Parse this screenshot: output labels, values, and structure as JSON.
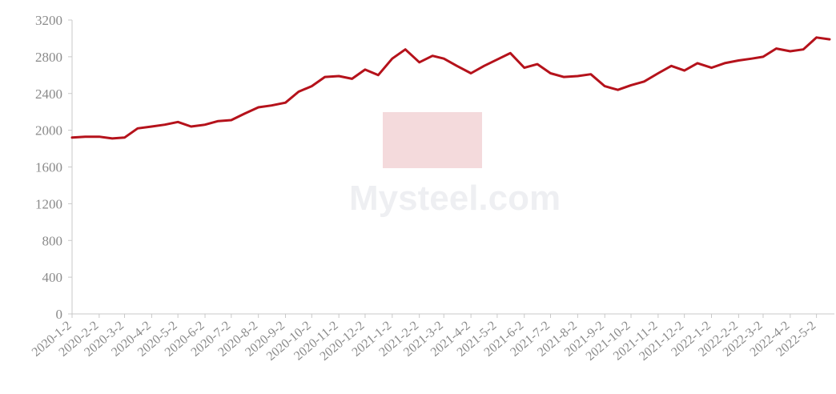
{
  "chart_data": {
    "type": "line",
    "title": "",
    "xlabel": "",
    "ylabel": "",
    "ylim": [
      0,
      3200
    ],
    "grid": false,
    "legend": "none",
    "y_ticks": [
      "0",
      "400",
      "800",
      "1200",
      "1600",
      "2000",
      "2400",
      "2800",
      "3200"
    ],
    "x_ticks": [
      "2020-1-2",
      "2020-2-2",
      "2020-3-2",
      "2020-4-2",
      "2020-5-2",
      "2020-6-2",
      "2020-7-2",
      "2020-8-2",
      "2020-9-2",
      "2020-10-2",
      "2020-11-2",
      "2020-12-2",
      "2021-1-2",
      "2021-2-2",
      "2021-3-2",
      "2021-4-2",
      "2021-5-2",
      "2021-6-2",
      "2021-7-2",
      "2021-8-2",
      "2021-9-2",
      "2021-10-2",
      "2021-11-2",
      "2021-12-2",
      "2022-1-2",
      "2022-2-2",
      "2022-3-2",
      "2022-4-2",
      "2022-5-2"
    ],
    "series": [
      {
        "color": "#b5121b",
        "x": [
          "2020-1-2",
          "2020-1-17",
          "2020-2-2",
          "2020-2-17",
          "2020-3-2",
          "2020-3-17",
          "2020-4-2",
          "2020-4-17",
          "2020-5-2",
          "2020-5-17",
          "2020-6-2",
          "2020-6-17",
          "2020-7-2",
          "2020-7-17",
          "2020-8-2",
          "2020-8-17",
          "2020-9-2",
          "2020-9-17",
          "2020-10-2",
          "2020-10-17",
          "2020-11-2",
          "2020-11-17",
          "2020-12-2",
          "2020-12-17",
          "2021-1-2",
          "2021-1-17",
          "2021-2-2",
          "2021-2-17",
          "2021-3-2",
          "2021-3-17",
          "2021-4-2",
          "2021-4-17",
          "2021-5-2",
          "2021-5-17",
          "2021-6-2",
          "2021-6-17",
          "2021-7-2",
          "2021-7-17",
          "2021-8-2",
          "2021-8-17",
          "2021-9-2",
          "2021-9-17",
          "2021-10-2",
          "2021-10-17",
          "2021-11-2",
          "2021-11-17",
          "2021-12-2",
          "2021-12-17",
          "2022-1-2",
          "2022-1-17",
          "2022-2-2",
          "2022-2-17",
          "2022-3-2",
          "2022-3-17",
          "2022-4-2",
          "2022-4-17",
          "2022-5-2",
          "2022-5-17"
        ],
        "values": [
          1920,
          1930,
          1930,
          1910,
          1920,
          2020,
          2040,
          2060,
          2090,
          2040,
          2060,
          2100,
          2110,
          2180,
          2250,
          2270,
          2300,
          2420,
          2480,
          2580,
          2590,
          2560,
          2660,
          2600,
          2780,
          2880,
          2740,
          2810,
          2780,
          2700,
          2620,
          2700,
          2770,
          2840,
          2680,
          2720,
          2620,
          2580,
          2590,
          2610,
          2480,
          2440,
          2490,
          2530,
          2620,
          2700,
          2650,
          2730,
          2680,
          2730,
          2760,
          2780,
          2800,
          2890,
          2860,
          2880,
          3010,
          2990
        ]
      }
    ]
  },
  "watermark": {
    "text": "Mysteel.com"
  }
}
